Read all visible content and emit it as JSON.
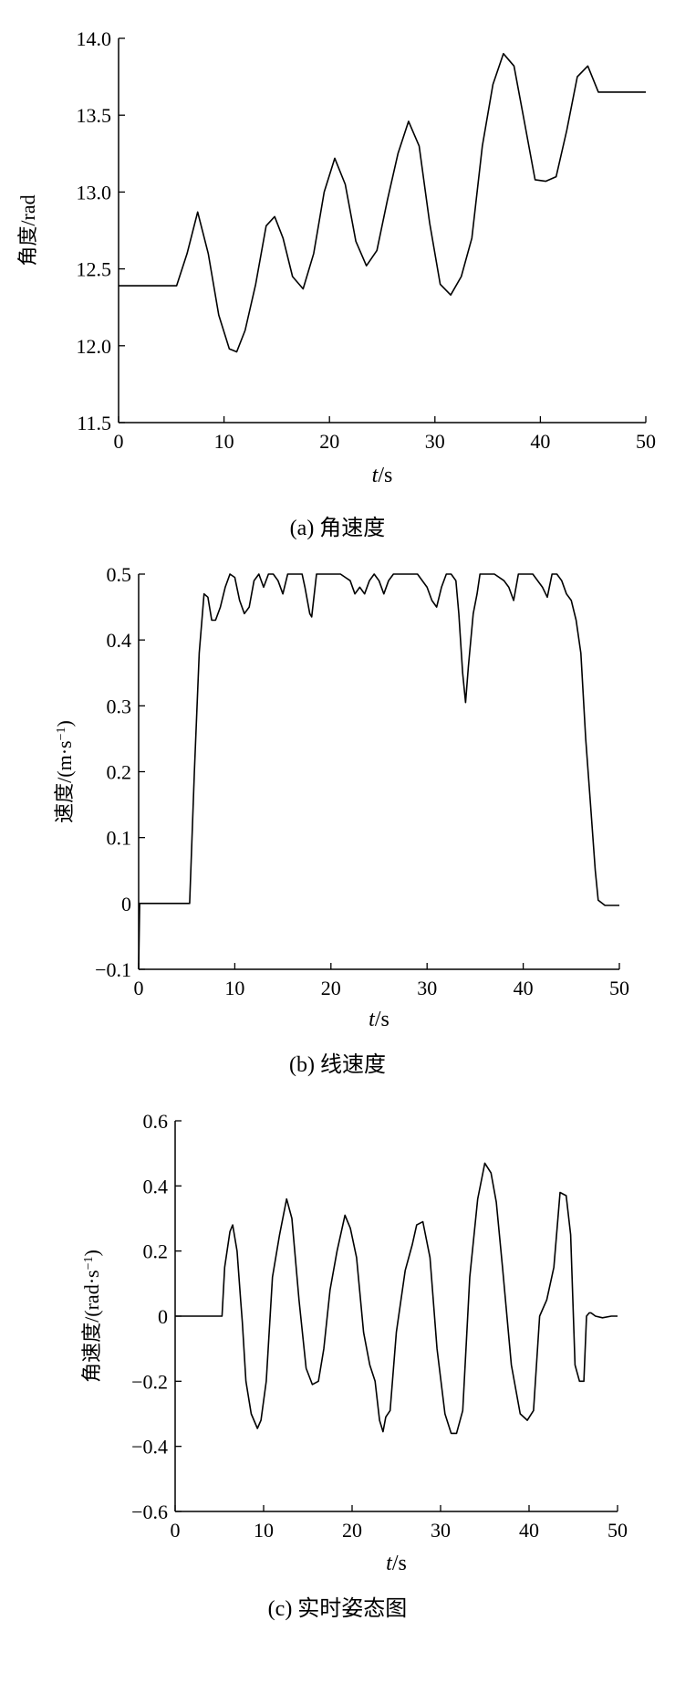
{
  "chart_data": [
    {
      "type": "line",
      "caption": "(a) 角速度",
      "xlabel_italic": "t",
      "xlabel_unit": "/s",
      "ylabel": "角度/rad",
      "xlim": [
        0,
        50
      ],
      "ylim": [
        11.5,
        14.0
      ],
      "xticks": [
        0,
        10,
        20,
        30,
        40,
        50
      ],
      "yticks": [
        11.5,
        12.0,
        12.5,
        13.0,
        13.5,
        14.0
      ],
      "ytick_labels": [
        "11.5",
        "12.0",
        "12.5",
        "13.0",
        "13.5",
        "14.0"
      ],
      "grid": false,
      "series": [
        {
          "x": [
            0,
            5.5,
            6.5,
            7.5,
            8.5,
            9.5,
            10.5,
            11.2,
            12.0,
            13.0,
            14.0,
            14.8,
            15.6,
            16.5,
            17.5,
            18.5,
            19.5,
            20.5,
            21.5,
            22.5,
            23.5,
            24.5,
            25.5,
            26.5,
            27.5,
            28.5,
            29.5,
            30.5,
            31.5,
            32.5,
            33.5,
            34.5,
            35.5,
            36.5,
            37.5,
            38.5,
            39.5,
            40.5,
            41.5,
            42.5,
            43.5,
            44.5,
            45.5,
            46.0,
            46.5,
            48,
            50
          ],
          "y": [
            12.39,
            12.39,
            12.6,
            12.87,
            12.6,
            12.2,
            11.98,
            11.96,
            12.1,
            12.4,
            12.78,
            12.84,
            12.7,
            12.45,
            12.37,
            12.6,
            13.0,
            13.22,
            13.05,
            12.68,
            12.52,
            12.62,
            12.95,
            13.25,
            13.46,
            13.3,
            12.8,
            12.4,
            12.33,
            12.45,
            12.7,
            13.3,
            13.7,
            13.9,
            13.82,
            13.45,
            13.08,
            13.07,
            13.1,
            13.4,
            13.75,
            13.82,
            13.65,
            13.65,
            13.65,
            13.65,
            13.65
          ]
        }
      ]
    },
    {
      "type": "line",
      "caption": "(b) 线速度",
      "xlabel_italic": "t",
      "xlabel_unit": "/s",
      "ylabel": "速度/(m·s",
      "ylabel_sup": "−1",
      "ylabel_close": ")",
      "xlim": [
        0,
        50
      ],
      "ylim": [
        -0.1,
        0.5
      ],
      "xticks": [
        0,
        10,
        20,
        30,
        40,
        50
      ],
      "yticks": [
        -0.1,
        0,
        0.1,
        0.2,
        0.3,
        0.4,
        0.5
      ],
      "ytick_labels": [
        "−0.1",
        "0",
        "0.1",
        "0.2",
        "0.3",
        "0.4",
        "0.5"
      ],
      "grid": false,
      "series": [
        {
          "x": [
            0,
            0.1,
            5.3,
            5.8,
            6.3,
            6.8,
            7.2,
            7.6,
            8.0,
            8.5,
            9.0,
            9.5,
            10.0,
            10.5,
            11.0,
            11.5,
            12.0,
            12.5,
            13.0,
            13.5,
            14.0,
            14.5,
            15.0,
            15.5,
            16.0,
            16.5,
            17.0,
            17.3,
            17.8,
            18.0,
            18.5,
            19.0,
            20.0,
            21.0,
            22.0,
            22.5,
            23.0,
            23.5,
            24.0,
            24.5,
            25.0,
            25.5,
            26.0,
            26.5,
            27.0,
            28.0,
            29.0,
            30.0,
            30.5,
            31.0,
            31.5,
            32.0,
            32.5,
            33.0,
            33.3,
            33.7,
            34.0,
            34.3,
            34.8,
            35.2,
            35.5,
            36.0,
            37.0,
            38.0,
            38.5,
            39.0,
            39.5,
            40.0,
            41.0,
            42.0,
            42.5,
            43.0,
            43.5,
            44.0,
            44.5,
            45.0,
            45.5,
            46.0,
            46.5,
            47.0,
            47.5,
            47.8,
            48.5,
            50
          ],
          "y": [
            -0.1,
            0,
            0,
            0.2,
            0.38,
            0.47,
            0.465,
            0.43,
            0.43,
            0.45,
            0.48,
            0.5,
            0.495,
            0.46,
            0.44,
            0.45,
            0.49,
            0.5,
            0.48,
            0.5,
            0.5,
            0.49,
            0.47,
            0.5,
            0.5,
            0.5,
            0.5,
            0.48,
            0.44,
            0.435,
            0.5,
            0.5,
            0.5,
            0.5,
            0.49,
            0.47,
            0.48,
            0.47,
            0.49,
            0.5,
            0.49,
            0.47,
            0.49,
            0.5,
            0.5,
            0.5,
            0.5,
            0.48,
            0.46,
            0.45,
            0.48,
            0.5,
            0.5,
            0.49,
            0.44,
            0.35,
            0.305,
            0.36,
            0.44,
            0.47,
            0.5,
            0.5,
            0.5,
            0.49,
            0.48,
            0.46,
            0.5,
            0.5,
            0.5,
            0.48,
            0.465,
            0.5,
            0.5,
            0.49,
            0.47,
            0.46,
            0.43,
            0.38,
            0.25,
            0.15,
            0.05,
            0.005,
            -0.003,
            -0.003
          ]
        }
      ]
    },
    {
      "type": "line",
      "caption": "(c) 实时姿态图",
      "xlabel_italic": "t",
      "xlabel_unit": "/s",
      "ylabel": "角速度/(rad·s",
      "ylabel_sup": "−1",
      "ylabel_close": ")",
      "xlim": [
        0,
        50
      ],
      "ylim": [
        -0.6,
        0.6
      ],
      "xticks": [
        0,
        10,
        20,
        30,
        40,
        50
      ],
      "yticks": [
        -0.6,
        -0.4,
        -0.2,
        0,
        0.2,
        0.4,
        0.6
      ],
      "ytick_labels": [
        "−0.6",
        "−0.4",
        "−0.2",
        "0",
        "0.2",
        "0.4",
        "0.6"
      ],
      "grid": false,
      "series": [
        {
          "x": [
            0,
            5.3,
            5.6,
            6.2,
            6.5,
            7.0,
            7.4,
            7.6,
            8.0,
            8.6,
            9.3,
            9.7,
            10.3,
            11.0,
            11.8,
            12.6,
            13.2,
            14.0,
            14.8,
            15.5,
            16.2,
            16.8,
            17.5,
            18.3,
            19.2,
            19.8,
            20.5,
            21.3,
            22.0,
            22.6,
            23.1,
            23.5,
            23.8,
            24.3,
            25.0,
            26.0,
            26.8,
            27.3,
            28.0,
            28.8,
            29.6,
            30.5,
            31.2,
            31.8,
            32.5,
            33.3,
            34.2,
            35.0,
            35.7,
            36.3,
            37.0,
            38.0,
            39.0,
            39.8,
            40.5,
            41.2,
            42.0,
            42.8,
            43.5,
            44.2,
            44.7,
            45.2,
            45.7,
            46.2,
            46.5,
            46.8,
            47.0,
            47.5,
            48.3,
            49.3,
            50
          ],
          "y": [
            0,
            0,
            0.15,
            0.26,
            0.28,
            0.2,
            0.05,
            -0.02,
            -0.2,
            -0.3,
            -0.345,
            -0.32,
            -0.2,
            0.12,
            0.25,
            0.36,
            0.3,
            0.05,
            -0.16,
            -0.21,
            -0.2,
            -0.1,
            0.08,
            0.2,
            0.31,
            0.27,
            0.18,
            -0.05,
            -0.15,
            -0.2,
            -0.32,
            -0.355,
            -0.31,
            -0.29,
            -0.05,
            0.14,
            0.22,
            0.28,
            0.29,
            0.18,
            -0.1,
            -0.3,
            -0.36,
            -0.36,
            -0.29,
            0.12,
            0.36,
            0.47,
            0.44,
            0.35,
            0.15,
            -0.15,
            -0.3,
            -0.32,
            -0.29,
            0.0,
            0.05,
            0.15,
            0.38,
            0.37,
            0.25,
            -0.15,
            -0.2,
            -0.2,
            0.0,
            0.01,
            0.01,
            0.0,
            -0.005,
            0.0,
            0.0
          ]
        }
      ]
    }
  ]
}
